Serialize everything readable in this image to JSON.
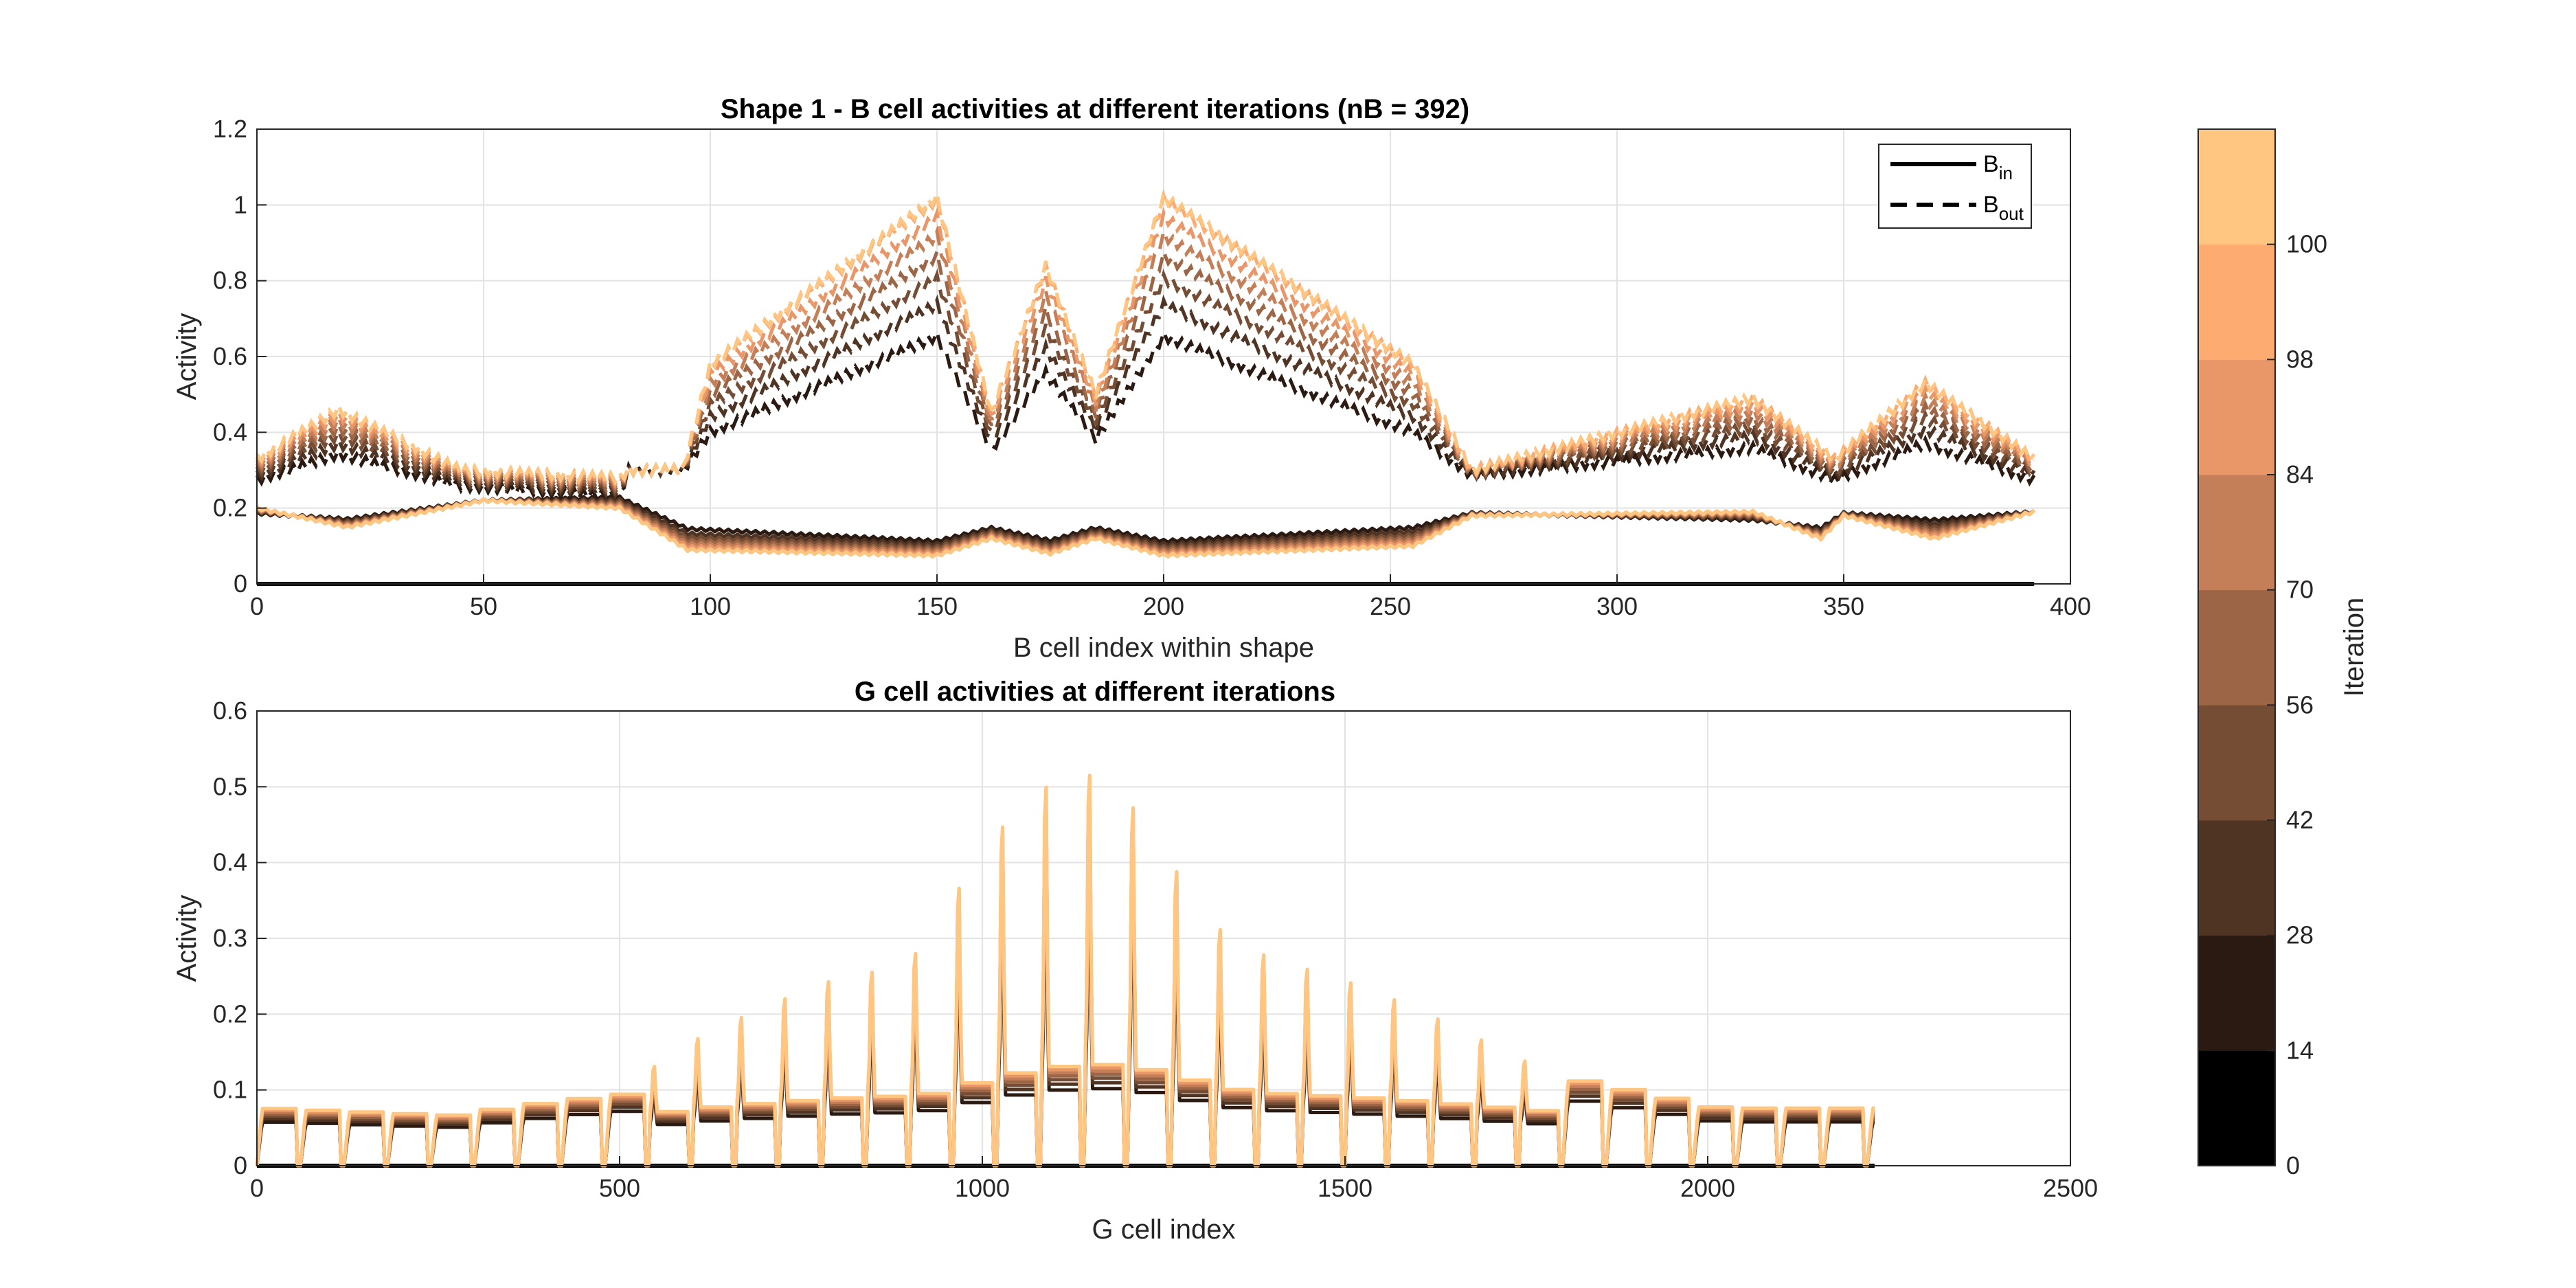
{
  "chart_data": [
    {
      "type": "line",
      "title": "Shape 1 - B cell activities at different iterations (nB = 392)",
      "xlabel": "B cell index within shape",
      "ylabel": "Activity",
      "xlim": [
        0,
        400
      ],
      "ylim": [
        0,
        1.2
      ],
      "x_ticks": [
        "0",
        "50",
        "100",
        "150",
        "200",
        "250",
        "300",
        "350",
        "400"
      ],
      "y_ticks": [
        "0",
        "0.2",
        "0.4",
        "0.6",
        "0.8",
        "1",
        "1.2"
      ],
      "grid": true,
      "legend": {
        "position": "top-right",
        "entries": [
          {
            "main": "B",
            "sub": "in",
            "style": "solid"
          },
          {
            "main": "B",
            "sub": "out",
            "style": "dashed"
          }
        ]
      },
      "iterations": [
        0,
        14,
        28,
        42,
        56,
        70,
        84,
        98,
        100
      ],
      "b_in_profile": {
        "x": [
          0,
          20,
          50,
          80,
          95,
          150,
          162,
          175,
          185,
          200,
          255,
          268,
          330,
          345,
          350,
          370,
          392
        ],
        "at_iter_0": [
          0.18,
          0.18,
          0.22,
          0.24,
          0.17,
          0.13,
          0.16,
          0.13,
          0.16,
          0.13,
          0.17,
          0.19,
          0.16,
          0.16,
          0.19,
          0.19,
          0.19
        ],
        "at_iter_100": [
          0.2,
          0.15,
          0.22,
          0.2,
          0.09,
          0.075,
          0.12,
          0.08,
          0.12,
          0.075,
          0.1,
          0.18,
          0.19,
          0.12,
          0.18,
          0.12,
          0.19
        ]
      },
      "b_out_profile": {
        "x": [
          0,
          18,
          45,
          80,
          82,
          94,
          100,
          150,
          162,
          174,
          185,
          200,
          255,
          268,
          330,
          348,
          368,
          392
        ],
        "at_iter_0": [
          0.25,
          0.29,
          0.24,
          0.21,
          0.3,
          0.3,
          0.32,
          0.49,
          0.31,
          0.43,
          0.33,
          0.49,
          0.32,
          0.28,
          0.3,
          0.25,
          0.3,
          0.25
        ],
        "at_iter_100": [
          0.33,
          0.46,
          0.3,
          0.28,
          0.3,
          0.3,
          0.58,
          1.02,
          0.45,
          0.84,
          0.5,
          1.02,
          0.58,
          0.3,
          0.49,
          0.33,
          0.53,
          0.33
        ]
      }
    },
    {
      "type": "line",
      "title": "G cell activities at different iterations",
      "xlabel": "G cell index",
      "ylabel": "Activity",
      "xlim": [
        0,
        2500
      ],
      "ylim": [
        0,
        0.6
      ],
      "x_ticks": [
        "0",
        "500",
        "1000",
        "1500",
        "2000",
        "2500"
      ],
      "y_ticks": [
        "0",
        "0.1",
        "0.2",
        "0.3",
        "0.4",
        "0.5",
        "0.6"
      ],
      "grid": true,
      "g_count": 2230,
      "envelope": {
        "x": [
          0,
          250,
          400,
          500,
          600,
          700,
          800,
          900,
          950,
          1000,
          1070,
          1120,
          1160,
          1200,
          1260,
          1300,
          1400,
          1500,
          1600,
          1700,
          1800,
          1900,
          2000,
          2100,
          2230
        ],
        "peak_at_iter_100": [
          0.08,
          0.07,
          0.09,
          0.1,
          0.17,
          0.22,
          0.26,
          0.28,
          0.35,
          0.44,
          0.52,
          0.55,
          0.55,
          0.52,
          0.44,
          0.35,
          0.29,
          0.26,
          0.22,
          0.17,
          0.12,
          0.1,
          0.08,
          0.08,
          0.08
        ]
      }
    }
  ],
  "colorbar": {
    "label": "Iteration",
    "tick_labels": [
      "0",
      "14",
      "28",
      "42",
      "56",
      "70",
      "84",
      "98",
      "100"
    ],
    "colors": [
      "#000000",
      "#2a1a12",
      "#4f3323",
      "#754d34",
      "#9c6646",
      "#c47f58",
      "#e99769",
      "#fdab70",
      "#ffc682"
    ]
  }
}
